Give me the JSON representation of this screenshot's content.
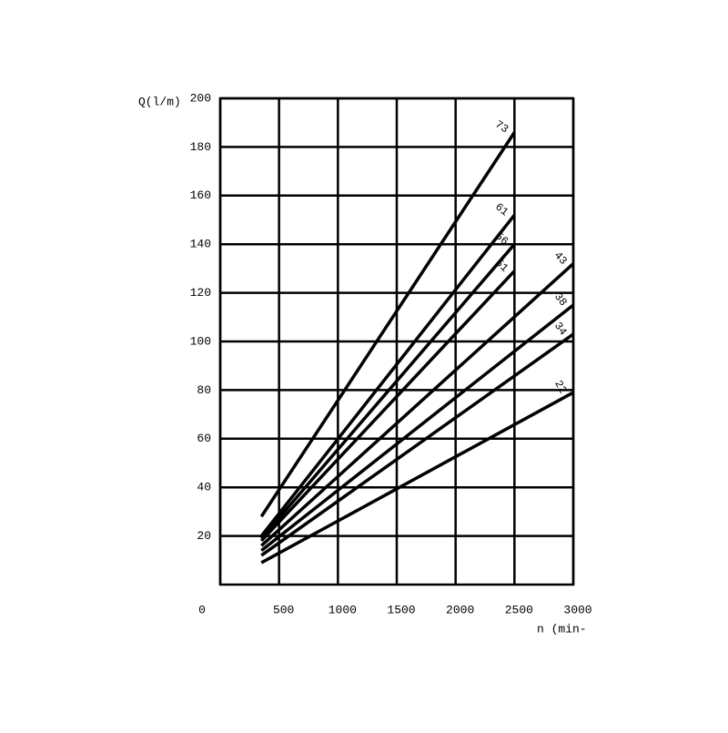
{
  "chart_data": {
    "type": "line",
    "y_label": "Q(l/m)",
    "x_label": "n (min-",
    "xlim": [
      0,
      3000
    ],
    "xticks": [
      0,
      500,
      1000,
      1500,
      2000,
      2500,
      3000
    ],
    "ylim": [
      0,
      200
    ],
    "yticks": [
      20,
      40,
      60,
      80,
      100,
      120,
      140,
      160,
      180,
      200
    ],
    "grid": true,
    "series": [
      {
        "name": "73",
        "color": "#000000",
        "x": [
          350,
          2500
        ],
        "values": [
          28,
          186
        ]
      },
      {
        "name": "61",
        "color": "#000000",
        "x": [
          350,
          2500
        ],
        "values": [
          20,
          152
        ]
      },
      {
        "name": "56",
        "color": "#000000",
        "x": [
          350,
          2500
        ],
        "values": [
          19,
          140
        ]
      },
      {
        "name": "51",
        "color": "#000000",
        "x": [
          350,
          2500
        ],
        "values": [
          18,
          129
        ]
      },
      {
        "name": "43",
        "color": "#000000",
        "x": [
          350,
          3000
        ],
        "values": [
          16,
          132
        ]
      },
      {
        "name": "38",
        "color": "#000000",
        "x": [
          350,
          3000
        ],
        "values": [
          14,
          115
        ]
      },
      {
        "name": "34",
        "color": "#000000",
        "x": [
          350,
          3000
        ],
        "values": [
          12,
          103
        ]
      },
      {
        "name": "22",
        "color": "#000000",
        "x": [
          350,
          3000
        ],
        "values": [
          9,
          79
        ]
      }
    ]
  }
}
